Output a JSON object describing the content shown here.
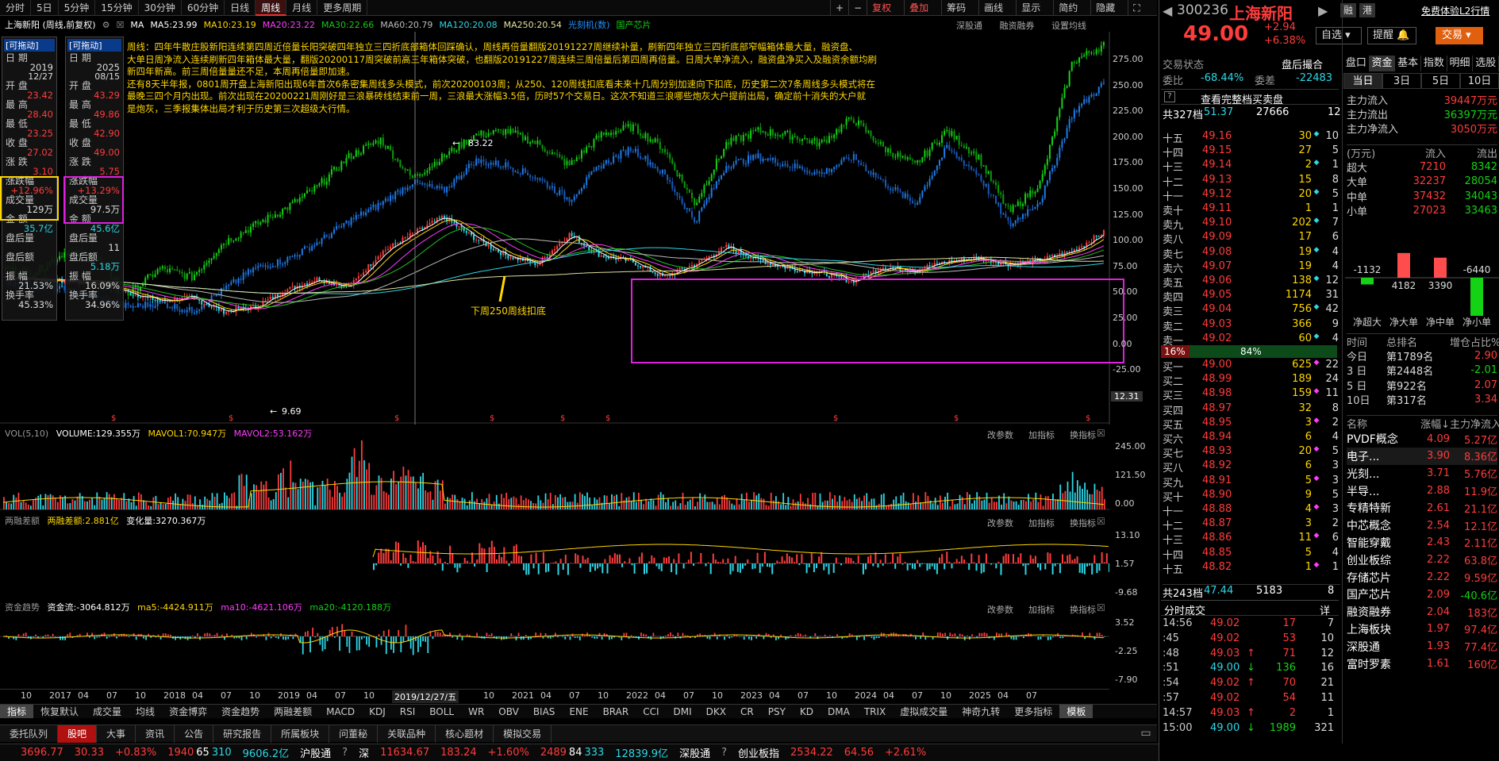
{
  "periods": [
    "分时",
    "5日",
    "5分钟",
    "15分钟",
    "30分钟",
    "60分钟",
    "日线",
    "周线",
    "月线",
    "更多周期"
  ],
  "active_period": "周线",
  "toolbar_right": [
    "+",
    "−",
    "复权",
    "叠加",
    "筹码",
    "画线",
    "显示",
    "简约",
    "隐藏"
  ],
  "stock_title": "上海新阳  (周线,前复权)",
  "ma": {
    "ma": "MA",
    "ma5": "MA5:23.99",
    "ma10": "MA10:23.19",
    "ma20": "MA20:23.22",
    "ma30": "MA30:22.66",
    "ma60": "MA60:20.79",
    "ma120": "MA120:20.08",
    "ma250": "MA250:20.54",
    "tag1": "光刻机(数)",
    "tag2": "国产芯片"
  },
  "chart_ctrls": [
    "深股通",
    "融资融券",
    "设置均线"
  ],
  "info_left": {
    "badge": "[可拖动]",
    "rows": [
      [
        "日 期",
        "2019",
        "12/27"
      ],
      [
        "开 盘",
        "23.42",
        ""
      ],
      [
        "最 高",
        "28.40",
        ""
      ],
      [
        "最 低",
        "23.25",
        ""
      ],
      [
        "收 盘",
        "27.02",
        ""
      ],
      [
        "涨 跌",
        "3.10",
        ""
      ],
      [
        "涨跌幅",
        "+12.96%",
        ""
      ],
      [
        "成交量",
        "129万",
        ""
      ],
      [
        "金 额",
        "35.7亿",
        ""
      ],
      [
        "盘后量",
        "",
        ""
      ],
      [
        "盘后额",
        "",
        ""
      ],
      [
        "振 幅",
        "21.53%",
        ""
      ],
      [
        "换手率",
        "45.33%",
        ""
      ]
    ]
  },
  "info_right": {
    "badge": "[可拖动]",
    "rows": [
      [
        "日 期",
        "2025",
        "08/15"
      ],
      [
        "开 盘",
        "43.29",
        ""
      ],
      [
        "最 高",
        "49.86",
        ""
      ],
      [
        "最 低",
        "42.90",
        ""
      ],
      [
        "收 盘",
        "49.00",
        ""
      ],
      [
        "涨 跌",
        "5.75",
        ""
      ],
      [
        "涨跌幅",
        "+13.29%",
        ""
      ],
      [
        "成交量",
        "97.5万",
        ""
      ],
      [
        "金 额",
        "45.6亿",
        ""
      ],
      [
        "盘后量",
        "11",
        ""
      ],
      [
        "盘后额",
        "5.18万",
        ""
      ],
      [
        "振 幅",
        "16.09%",
        ""
      ],
      [
        "换手率",
        "34.96%",
        ""
      ]
    ]
  },
  "annotation": [
    "周线：四年牛散庄股新阳连续第四周近倍量长阳突破四年独立三四折底部箱体回踩确认，周线再倍量翻版20191227周继续补量，刷新四年独立三四折底部窄幅箱体最大量，融资盘、",
    "大单日周净流入连续刷新四年箱体最大量，翻版20200117周突破前高三年箱体突破，也翻版20191227周连续三周倍量后第四周再倍量。日周大单净流入，融资盘净买入及融资余额均刷",
    "新四年新高。前三周倍量量还不足，本周再倍量即加速。",
    "还有8天半年报，0801周开盘上海新阳出现6年首次6条密集周线多头模式，前次20200103周；从250、120周线扣底看未来十几周分别加速向下扣底，历史第二次7条周线多头模式将在",
    "最晚三四个月内出现。前次出现在20200221周刚好是三浪暴砖线结束前一周，三浪最大涨幅3.5倍，历时57个交易日。这次不知道三浪哪些炮灰大户提前出局，确定前十消失的大户就",
    "是炮灰，三季报集体出局才利于历史第三次超级大行情。"
  ],
  "chart_labels": {
    "high": "83.22",
    "low": "9.69",
    "ma250_note": "下周250周线扣底",
    "price_tag": "12.31"
  },
  "y_axis": [
    "275.00",
    "250.00",
    "225.00",
    "200.00",
    "175.00",
    "150.00",
    "125.00",
    "100.00",
    "75.00",
    "50.00",
    "25.00",
    "0.00",
    "-25.00"
  ],
  "vol": {
    "title": "VOL(5,10)",
    "volume": "VOLUME:129.355万",
    "mavol1": "MAVOL1:70.947万",
    "mavol2": "MAVOL2:53.162万",
    "axis": [
      "245.00",
      "121.50",
      "0.00"
    ]
  },
  "margin": {
    "title": "两融差额",
    "value": "两融差额:2.881亿",
    "change": "变化量:3270.367万",
    "axis": [
      "13.10",
      "1.57",
      "-9.68"
    ]
  },
  "fund": {
    "title": "资金趋势",
    "flow": "资金流:-3064.812万",
    "ma5": "ma5:-4424.911万",
    "ma10": "ma10:-4621.106万",
    "ma20": "ma20:-4120.188万",
    "axis": [
      "3.52",
      "-2.25",
      "-7.90"
    ]
  },
  "panel_ctrls": [
    "改参数",
    "加指标",
    "换指标"
  ],
  "x_axis": [
    "10",
    "2017",
    "04",
    "07",
    "10",
    "2018",
    "04",
    "07",
    "10",
    "2019",
    "04",
    "07",
    "10",
    "2019/12/27/五",
    "10",
    "2021",
    "04",
    "07",
    "10",
    "2022",
    "04",
    "07",
    "10",
    "2023",
    "04",
    "07",
    "10",
    "2024",
    "04",
    "07",
    "10",
    "2025",
    "04",
    "07"
  ],
  "indicator_tabs": [
    "指标",
    "恢复默认",
    "成交量",
    "均线",
    "资金博弈",
    "资金趋势",
    "两融差额",
    "MACD",
    "KDJ",
    "RSI",
    "BOLL",
    "WR",
    "OBV",
    "BIAS",
    "ENE",
    "BRAR",
    "CCI",
    "DMI",
    "DKX",
    "CR",
    "PSY",
    "KD",
    "DMA",
    "TRIX",
    "虚拟成交量",
    "神奇九转",
    "更多指标",
    "模板"
  ],
  "bottom_tabs": [
    "委托队列",
    "股吧",
    "大事",
    "资讯",
    "公告",
    "研究报告",
    "所属板块",
    "问董秘",
    "关联品种",
    "核心题材",
    "模拟交易"
  ],
  "status": {
    "sh": "3696.77",
    "sh_chg": "30.33",
    "sh_pct": "+0.83%",
    "sh_up": "1940",
    "sh_flat": "65",
    "sh_dn": "310",
    "sh_amt": "9606.2亿",
    "hgt": "沪股通",
    "sz_label": "深",
    "sz": "11634.67",
    "sz_chg": "183.24",
    "sz_pct": "+1.60%",
    "sz_up": "2489",
    "sz_flat": "84",
    "sz_dn": "333",
    "sz_amt": "12839.9亿",
    "sgt": "深股通",
    "cyb": "创业板指",
    "cyb_v": "2534.22",
    "cyb_chg": "64.56",
    "cyb_pct": "+2.61%"
  },
  "quote": {
    "code": "300236",
    "name": "上海新阳",
    "badge1": "融",
    "badge2": "港",
    "l2": "免费体验L2行情",
    "price": "49.00",
    "chg": "+2.94",
    "pct": "+6.38%",
    "btn_zixuan": "自选",
    "btn_tixing": "提醒",
    "btn_jiaoyi": "交易"
  },
  "trade_state": {
    "label": "交易状态",
    "value": "盘后撮合",
    "wb_label": "委比",
    "wb": "-68.44%",
    "wc_label": "委差",
    "wc": "-22483",
    "full_book": "查看完整档买卖盘",
    "total_label": "共327档",
    "total_price": "51.37",
    "total_vol": "27666",
    "total_n": "12"
  },
  "asks": [
    [
      "十五",
      "49.16",
      "30",
      "10"
    ],
    [
      "十四",
      "49.15",
      "27",
      "5"
    ],
    [
      "十三",
      "49.14",
      "2",
      "1"
    ],
    [
      "十二",
      "49.13",
      "15",
      "8"
    ],
    [
      "十一",
      "49.12",
      "20",
      "5"
    ],
    [
      "卖十",
      "49.11",
      "1",
      "1"
    ],
    [
      "卖九",
      "49.10",
      "202",
      "7"
    ],
    [
      "卖八",
      "49.09",
      "17",
      "6"
    ],
    [
      "卖七",
      "49.08",
      "19",
      "4"
    ],
    [
      "卖六",
      "49.07",
      "19",
      "4"
    ],
    [
      "卖五",
      "49.06",
      "138",
      "12"
    ],
    [
      "卖四",
      "49.05",
      "1174",
      "31"
    ],
    [
      "卖三",
      "49.04",
      "756",
      "42"
    ],
    [
      "卖二",
      "49.03",
      "366",
      "9"
    ],
    [
      "卖一",
      "49.02",
      "60",
      "4"
    ]
  ],
  "ratio": {
    "left": "16%",
    "right": "84%"
  },
  "bids": [
    [
      "买一",
      "49.00",
      "625",
      "22"
    ],
    [
      "买二",
      "48.99",
      "189",
      "24"
    ],
    [
      "买三",
      "48.98",
      "159",
      "11"
    ],
    [
      "买四",
      "48.97",
      "32",
      "8"
    ],
    [
      "买五",
      "48.95",
      "3",
      "2"
    ],
    [
      "买六",
      "48.94",
      "6",
      "4"
    ],
    [
      "买七",
      "48.93",
      "20",
      "5"
    ],
    [
      "买八",
      "48.92",
      "6",
      "3"
    ],
    [
      "买九",
      "48.91",
      "5",
      "3"
    ],
    [
      "买十",
      "48.90",
      "9",
      "5"
    ],
    [
      "十一",
      "48.88",
      "4",
      "3"
    ],
    [
      "十二",
      "48.87",
      "3",
      "2"
    ],
    [
      "十三",
      "48.86",
      "11",
      "6"
    ],
    [
      "十四",
      "48.85",
      "5",
      "4"
    ],
    [
      "十五",
      "48.82",
      "1",
      "1"
    ]
  ],
  "bid_total": {
    "label": "共243档",
    "price": "47.44",
    "vol": "5183",
    "n": "8"
  },
  "ticks_title": "分时成交",
  "ticks_btn": "详",
  "ticks": [
    [
      "14:56",
      "49.02",
      "17",
      "7",
      ""
    ],
    [
      ":45",
      "49.02",
      "53",
      "10",
      ""
    ],
    [
      ":48",
      "49.03",
      "71",
      "12",
      "up"
    ],
    [
      ":51",
      "49.00",
      "136",
      "16",
      "dn"
    ],
    [
      ":54",
      "49.02",
      "70",
      "21",
      "up"
    ],
    [
      ":57",
      "49.02",
      "54",
      "11",
      ""
    ],
    [
      "14:57",
      "49.03",
      "2",
      "1",
      "up"
    ],
    [
      "15:00",
      "49.00",
      "1989",
      "321",
      "dn"
    ]
  ],
  "tabs_fund": [
    "盘口",
    "资金",
    "基本",
    "指数",
    "明细",
    "选股"
  ],
  "tabs_days": [
    "当日",
    "3日",
    "5日",
    "10日"
  ],
  "main_flow": [
    [
      "主力流入",
      "39447万元"
    ],
    [
      "主力流出",
      "36397万元"
    ],
    [
      "主力净流入",
      "3050万元"
    ]
  ],
  "flow_head": [
    "(万元)",
    "流入",
    "流出"
  ],
  "flow_rows": [
    [
      "超大",
      "7210",
      "8342"
    ],
    [
      "大单",
      "32237",
      "28054"
    ],
    [
      "中单",
      "37432",
      "34043"
    ],
    [
      "小单",
      "27023",
      "33463"
    ]
  ],
  "net_bars": [
    [
      "净超大",
      "-1132"
    ],
    [
      "净大单",
      "4182"
    ],
    [
      "净中单",
      "3390"
    ],
    [
      "净小单",
      "-6440"
    ]
  ],
  "rank_head": [
    "时间",
    "总排名",
    "增仓占比%"
  ],
  "rank_rows": [
    [
      "今日",
      "第1789名",
      "2.90"
    ],
    [
      "3 日",
      "第2448名",
      "-2.01"
    ],
    [
      "5 日",
      "第922名",
      "2.07"
    ],
    [
      "10日",
      "第317名",
      "3.34"
    ]
  ],
  "sector_head": [
    "名称",
    "涨幅↓",
    "主力净流入"
  ],
  "sectors": [
    [
      "PVDF概念",
      "4.09",
      "5.27亿"
    ],
    [
      "电子...",
      "3.90",
      "8.36亿"
    ],
    [
      "光刻...",
      "3.71",
      "5.76亿"
    ],
    [
      "半导...",
      "2.88",
      "11.9亿"
    ],
    [
      "专精特新",
      "2.61",
      "21.1亿"
    ],
    [
      "中芯概念",
      "2.54",
      "12.1亿"
    ],
    [
      "智能穿戴",
      "2.43",
      "2.11亿"
    ],
    [
      "创业板综",
      "2.22",
      "63.8亿"
    ],
    [
      "存储芯片",
      "2.22",
      "9.59亿"
    ],
    [
      "国产芯片",
      "2.09",
      "-40.6亿"
    ],
    [
      "融资融券",
      "2.04",
      "183亿"
    ],
    [
      "上海板块",
      "1.97",
      "97.4亿"
    ],
    [
      "深股通",
      "1.93",
      "77.4亿"
    ],
    [
      "富时罗素",
      "1.61",
      "160亿"
    ]
  ],
  "colors": {
    "up": "#ff3c3c",
    "down": "#2dd7e6",
    "green_line": "#14d214",
    "blue_line": "#1e7be6",
    "box": "#e020e0",
    "yellow_box": "#ffd700"
  }
}
